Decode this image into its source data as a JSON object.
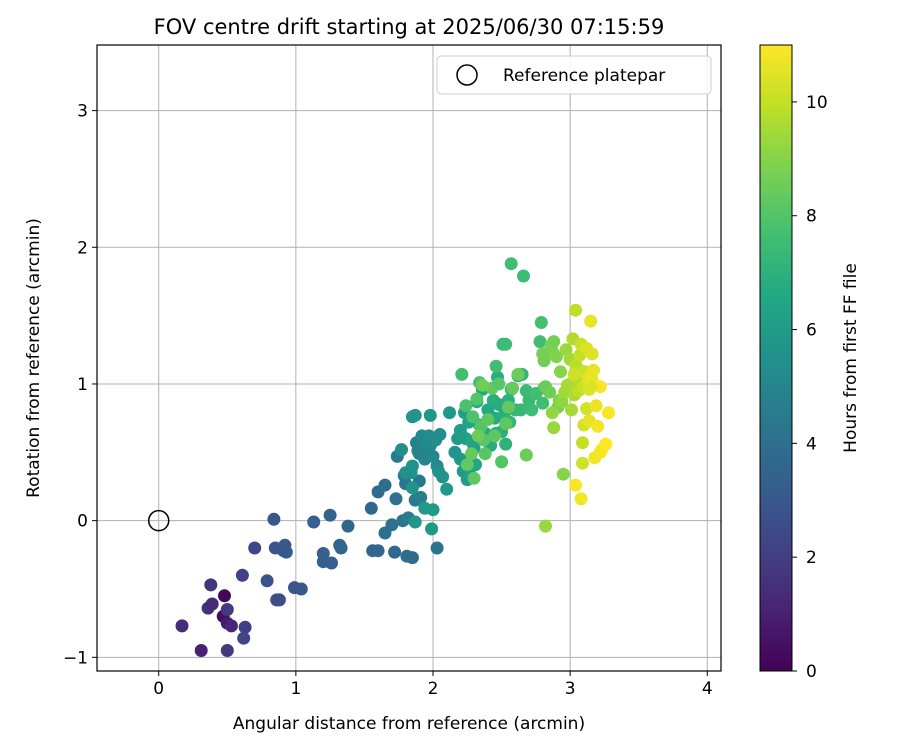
{
  "chart_data": {
    "type": "scatter",
    "title": "FOV centre drift starting at 2025/06/30 07:15:59",
    "xlabel": "Angular distance from reference (arcmin)",
    "ylabel": "Rotation from reference (arcmin)",
    "xlim": [
      -0.45,
      4.1
    ],
    "ylim": [
      -1.1,
      3.48
    ],
    "xticks": [
      0,
      1,
      2,
      3,
      4
    ],
    "yticks": [
      -1,
      0,
      1,
      2,
      3
    ],
    "grid": true,
    "legend": {
      "placement": "top-right",
      "entries": [
        "Reference platepar"
      ]
    },
    "reference_point": {
      "name": "Reference platepar",
      "x": 0,
      "y": 0
    },
    "colorbar": {
      "label": "Hours from first FF file",
      "colormap": "viridis",
      "range": [
        0,
        11
      ],
      "ticks": [
        0,
        2,
        4,
        6,
        8,
        10
      ]
    },
    "points": [
      {
        "x": 0.48,
        "y": -0.55,
        "c": 0.2
      },
      {
        "x": 0.47,
        "y": -0.7,
        "c": 0.4
      },
      {
        "x": 0.5,
        "y": -0.75,
        "c": 0.8
      },
      {
        "x": 0.17,
        "y": -0.77,
        "c": 1.4
      },
      {
        "x": 0.31,
        "y": -0.95,
        "c": 1.0
      },
      {
        "x": 0.5,
        "y": -0.95,
        "c": 1.8
      },
      {
        "x": 0.38,
        "y": -0.47,
        "c": 1.7
      },
      {
        "x": 0.36,
        "y": -0.64,
        "c": 1.5
      },
      {
        "x": 0.39,
        "y": -0.61,
        "c": 1.3
      },
      {
        "x": 0.5,
        "y": -0.65,
        "c": 1.9
      },
      {
        "x": 0.63,
        "y": -0.78,
        "c": 2.0
      },
      {
        "x": 0.62,
        "y": -0.86,
        "c": 2.2
      },
      {
        "x": 0.61,
        "y": -0.4,
        "c": 2.1
      },
      {
        "x": 0.53,
        "y": -0.77,
        "c": 1.2
      },
      {
        "x": 0.7,
        "y": -0.2,
        "c": 2.3
      },
      {
        "x": 0.84,
        "y": 0.01,
        "c": 3.0
      },
      {
        "x": 0.85,
        "y": -0.2,
        "c": 2.9
      },
      {
        "x": 0.92,
        "y": -0.18,
        "c": 3.1
      },
      {
        "x": 0.93,
        "y": -0.23,
        "c": 3.2
      },
      {
        "x": 0.91,
        "y": -0.22,
        "c": 3.0
      },
      {
        "x": 0.79,
        "y": -0.44,
        "c": 2.8
      },
      {
        "x": 0.86,
        "y": -0.58,
        "c": 2.7
      },
      {
        "x": 0.88,
        "y": -0.58,
        "c": 2.6
      },
      {
        "x": 0.99,
        "y": -0.49,
        "c": 2.9
      },
      {
        "x": 1.04,
        "y": -0.5,
        "c": 3.0
      },
      {
        "x": 1.13,
        "y": -0.01,
        "c": 3.3
      },
      {
        "x": 1.25,
        "y": 0.04,
        "c": 3.4
      },
      {
        "x": 1.2,
        "y": -0.24,
        "c": 3.4
      },
      {
        "x": 1.2,
        "y": -0.3,
        "c": 3.3
      },
      {
        "x": 1.26,
        "y": -0.31,
        "c": 3.2
      },
      {
        "x": 1.32,
        "y": -0.18,
        "c": 3.5
      },
      {
        "x": 1.33,
        "y": -0.2,
        "c": 3.6
      },
      {
        "x": 1.38,
        "y": -0.04,
        "c": 3.6
      },
      {
        "x": 1.55,
        "y": 0.09,
        "c": 3.7
      },
      {
        "x": 1.56,
        "y": -0.22,
        "c": 3.5
      },
      {
        "x": 1.6,
        "y": -0.22,
        "c": 3.6
      },
      {
        "x": 1.6,
        "y": 0.21,
        "c": 3.8
      },
      {
        "x": 1.65,
        "y": 0.26,
        "c": 3.9
      },
      {
        "x": 1.65,
        "y": -0.09,
        "c": 4.0
      },
      {
        "x": 1.7,
        "y": -0.03,
        "c": 4.1
      },
      {
        "x": 1.72,
        "y": -0.23,
        "c": 3.7
      },
      {
        "x": 1.73,
        "y": 0.16,
        "c": 4.1
      },
      {
        "x": 1.74,
        "y": 0.47,
        "c": 4.5
      },
      {
        "x": 1.78,
        "y": 0.0,
        "c": 4.2
      },
      {
        "x": 1.79,
        "y": 0.33,
        "c": 4.4
      },
      {
        "x": 1.8,
        "y": 0.27,
        "c": 4.3
      },
      {
        "x": 1.81,
        "y": -0.26,
        "c": 3.9
      },
      {
        "x": 1.82,
        "y": 0.02,
        "c": 4.6
      },
      {
        "x": 1.85,
        "y": -0.27,
        "c": 3.8
      },
      {
        "x": 1.87,
        "y": 0.15,
        "c": 4.5
      },
      {
        "x": 1.88,
        "y": 0.57,
        "c": 4.8
      },
      {
        "x": 1.89,
        "y": 0.51,
        "c": 4.7
      },
      {
        "x": 1.9,
        "y": 0.29,
        "c": 4.4
      },
      {
        "x": 1.9,
        "y": 0.49,
        "c": 4.9
      },
      {
        "x": 1.91,
        "y": 0.17,
        "c": 4.7
      },
      {
        "x": 1.92,
        "y": 0.62,
        "c": 5.0
      },
      {
        "x": 1.93,
        "y": 0.58,
        "c": 5.1
      },
      {
        "x": 1.94,
        "y": 0.45,
        "c": 4.9
      },
      {
        "x": 1.96,
        "y": 0.54,
        "c": 5.2
      },
      {
        "x": 1.97,
        "y": 0.62,
        "c": 5.3
      },
      {
        "x": 1.98,
        "y": 0.55,
        "c": 5.1
      },
      {
        "x": 2.0,
        "y": 0.47,
        "c": 5.0
      },
      {
        "x": 2.02,
        "y": 0.59,
        "c": 5.4
      },
      {
        "x": 2.03,
        "y": 0.4,
        "c": 5.2
      },
      {
        "x": 2.04,
        "y": 0.36,
        "c": 5.5
      },
      {
        "x": 2.05,
        "y": 0.63,
        "c": 5.3
      },
      {
        "x": 2.07,
        "y": 0.32,
        "c": 5.6
      },
      {
        "x": 1.87,
        "y": 0.77,
        "c": 5.6
      },
      {
        "x": 1.85,
        "y": 0.76,
        "c": 5.7
      },
      {
        "x": 1.85,
        "y": 0.4,
        "c": 5.6
      },
      {
        "x": 1.84,
        "y": 0.37,
        "c": 5.8
      },
      {
        "x": 1.84,
        "y": 0.35,
        "c": 5.7
      },
      {
        "x": 1.8,
        "y": 0.35,
        "c": 5.5
      },
      {
        "x": 1.77,
        "y": 0.52,
        "c": 5.4
      },
      {
        "x": 1.98,
        "y": 0.77,
        "c": 5.8
      },
      {
        "x": 1.99,
        "y": -0.06,
        "c": 5.9
      },
      {
        "x": 2.0,
        "y": 0.08,
        "c": 6.0
      },
      {
        "x": 2.03,
        "y": -0.2,
        "c": 4.2
      },
      {
        "x": 1.94,
        "y": 0.09,
        "c": 5.9
      },
      {
        "x": 1.87,
        "y": -0.01,
        "c": 5.8
      },
      {
        "x": 1.85,
        "y": 0.24,
        "c": 5.6
      },
      {
        "x": 2.1,
        "y": 0.23,
        "c": 5.9
      },
      {
        "x": 2.12,
        "y": 0.79,
        "c": 5.9
      },
      {
        "x": 2.16,
        "y": 0.5,
        "c": 5.7
      },
      {
        "x": 2.18,
        "y": 0.6,
        "c": 6.0
      },
      {
        "x": 2.2,
        "y": 0.45,
        "c": 5.8
      },
      {
        "x": 2.2,
        "y": 0.66,
        "c": 6.1
      },
      {
        "x": 2.22,
        "y": 0.36,
        "c": 5.9
      },
      {
        "x": 2.23,
        "y": 0.79,
        "c": 6.2
      },
      {
        "x": 2.24,
        "y": 0.6,
        "c": 6.1
      },
      {
        "x": 2.25,
        "y": 0.3,
        "c": 6.0
      },
      {
        "x": 2.26,
        "y": 0.72,
        "c": 6.3
      },
      {
        "x": 2.27,
        "y": 0.34,
        "c": 6.2
      },
      {
        "x": 2.28,
        "y": 0.58,
        "c": 6.4
      },
      {
        "x": 2.3,
        "y": 0.53,
        "c": 6.3
      },
      {
        "x": 2.31,
        "y": 0.41,
        "c": 6.5
      },
      {
        "x": 2.32,
        "y": 0.87,
        "c": 6.6
      },
      {
        "x": 2.34,
        "y": 0.7,
        "c": 6.5
      },
      {
        "x": 2.36,
        "y": 0.96,
        "c": 6.6
      },
      {
        "x": 2.38,
        "y": 0.64,
        "c": 6.7
      },
      {
        "x": 2.4,
        "y": 0.81,
        "c": 6.6
      },
      {
        "x": 2.42,
        "y": 0.55,
        "c": 6.8
      },
      {
        "x": 2.44,
        "y": 0.88,
        "c": 6.9
      },
      {
        "x": 2.45,
        "y": 0.75,
        "c": 6.7
      },
      {
        "x": 2.46,
        "y": 0.64,
        "c": 7.0
      },
      {
        "x": 2.47,
        "y": 1.05,
        "c": 6.9
      },
      {
        "x": 2.48,
        "y": 0.85,
        "c": 6.8
      },
      {
        "x": 2.5,
        "y": 0.65,
        "c": 7.0
      },
      {
        "x": 2.52,
        "y": 0.78,
        "c": 6.9
      },
      {
        "x": 2.53,
        "y": 0.56,
        "c": 7.1
      },
      {
        "x": 2.55,
        "y": 0.88,
        "c": 7.0
      },
      {
        "x": 2.56,
        "y": 0.72,
        "c": 7.2
      },
      {
        "x": 2.57,
        "y": 0.96,
        "c": 7.1
      },
      {
        "x": 2.6,
        "y": 0.81,
        "c": 7.2
      },
      {
        "x": 2.62,
        "y": 1.06,
        "c": 6.8
      },
      {
        "x": 2.64,
        "y": 0.81,
        "c": 7.3
      },
      {
        "x": 2.65,
        "y": 1.07,
        "c": 7.2
      },
      {
        "x": 2.68,
        "y": 0.95,
        "c": 7.4
      },
      {
        "x": 2.7,
        "y": 0.88,
        "c": 7.3
      },
      {
        "x": 2.72,
        "y": 0.81,
        "c": 7.5
      },
      {
        "x": 2.75,
        "y": 0.93,
        "c": 7.6
      },
      {
        "x": 2.78,
        "y": 1.31,
        "c": 7.6
      },
      {
        "x": 2.79,
        "y": 1.45,
        "c": 7.7
      },
      {
        "x": 2.8,
        "y": 0.86,
        "c": 7.6
      },
      {
        "x": 2.81,
        "y": 0.97,
        "c": 7.7
      },
      {
        "x": 2.57,
        "y": 1.88,
        "c": 7.6
      },
      {
        "x": 2.66,
        "y": 1.79,
        "c": 7.5
      },
      {
        "x": 2.51,
        "y": 1.29,
        "c": 7.4
      },
      {
        "x": 2.53,
        "y": 1.29,
        "c": 7.5
      },
      {
        "x": 2.46,
        "y": 1.13,
        "c": 7.6
      },
      {
        "x": 2.21,
        "y": 1.07,
        "c": 7.6
      },
      {
        "x": 2.34,
        "y": 1.01,
        "c": 7.7
      },
      {
        "x": 2.24,
        "y": 0.84,
        "c": 7.8
      },
      {
        "x": 2.29,
        "y": 0.76,
        "c": 7.9
      },
      {
        "x": 2.32,
        "y": 0.89,
        "c": 8.0
      },
      {
        "x": 2.35,
        "y": 0.69,
        "c": 8.0
      },
      {
        "x": 2.37,
        "y": 0.59,
        "c": 8.1
      },
      {
        "x": 2.38,
        "y": 0.49,
        "c": 8.1
      },
      {
        "x": 2.4,
        "y": 0.74,
        "c": 8.2
      },
      {
        "x": 2.43,
        "y": 0.97,
        "c": 8.3
      },
      {
        "x": 2.45,
        "y": 0.62,
        "c": 8.2
      },
      {
        "x": 2.48,
        "y": 1.0,
        "c": 8.1
      },
      {
        "x": 2.5,
        "y": 0.43,
        "c": 8.0
      },
      {
        "x": 2.53,
        "y": 0.71,
        "c": 8.2
      },
      {
        "x": 2.55,
        "y": 0.83,
        "c": 8.3
      },
      {
        "x": 2.58,
        "y": 0.97,
        "c": 8.4
      },
      {
        "x": 2.62,
        "y": 1.07,
        "c": 8.5
      },
      {
        "x": 2.25,
        "y": 0.41,
        "c": 8.3
      },
      {
        "x": 2.3,
        "y": 0.31,
        "c": 8.2
      },
      {
        "x": 2.28,
        "y": 0.49,
        "c": 8.4
      },
      {
        "x": 2.33,
        "y": 0.62,
        "c": 8.5
      },
      {
        "x": 2.36,
        "y": 0.99,
        "c": 8.6
      },
      {
        "x": 2.68,
        "y": 0.48,
        "c": 8.5
      },
      {
        "x": 2.82,
        "y": 0.98,
        "c": 8.5
      },
      {
        "x": 2.85,
        "y": 0.94,
        "c": 8.6
      },
      {
        "x": 2.86,
        "y": 1.28,
        "c": 8.7
      },
      {
        "x": 2.87,
        "y": 1.24,
        "c": 8.8
      },
      {
        "x": 2.88,
        "y": 1.31,
        "c": 8.7
      },
      {
        "x": 2.9,
        "y": 1.2,
        "c": 8.9
      },
      {
        "x": 2.91,
        "y": 0.83,
        "c": 8.8
      },
      {
        "x": 2.92,
        "y": 0.88,
        "c": 8.9
      },
      {
        "x": 2.93,
        "y": 1.09,
        "c": 9.0
      },
      {
        "x": 2.94,
        "y": 0.87,
        "c": 9.1
      },
      {
        "x": 2.95,
        "y": 0.34,
        "c": 9.0
      },
      {
        "x": 2.81,
        "y": 1.17,
        "c": 8.6
      },
      {
        "x": 2.8,
        "y": 1.22,
        "c": 8.7
      },
      {
        "x": 2.82,
        "y": -0.04,
        "c": 9.3
      },
      {
        "x": 2.87,
        "y": 0.79,
        "c": 9.2
      },
      {
        "x": 2.88,
        "y": 0.68,
        "c": 9.3
      },
      {
        "x": 2.96,
        "y": 0.94,
        "c": 9.4
      },
      {
        "x": 2.97,
        "y": 1.25,
        "c": 9.3
      },
      {
        "x": 2.98,
        "y": 0.99,
        "c": 9.5
      },
      {
        "x": 3.0,
        "y": 1.18,
        "c": 9.4
      },
      {
        "x": 3.0,
        "y": 1.0,
        "c": 9.6
      },
      {
        "x": 3.01,
        "y": 0.81,
        "c": 9.5
      },
      {
        "x": 3.02,
        "y": 1.33,
        "c": 9.7
      },
      {
        "x": 3.03,
        "y": 0.92,
        "c": 9.6
      },
      {
        "x": 3.04,
        "y": 1.14,
        "c": 9.8
      },
      {
        "x": 3.04,
        "y": 1.54,
        "c": 9.9
      },
      {
        "x": 3.05,
        "y": 1.04,
        "c": 9.7
      },
      {
        "x": 3.06,
        "y": 0.95,
        "c": 9.9
      },
      {
        "x": 3.07,
        "y": 1.21,
        "c": 10.0
      },
      {
        "x": 3.07,
        "y": 1.1,
        "c": 9.8
      },
      {
        "x": 3.08,
        "y": 1.29,
        "c": 10.1
      },
      {
        "x": 3.09,
        "y": 0.57,
        "c": 10.0
      },
      {
        "x": 3.09,
        "y": 0.42,
        "c": 10.2
      },
      {
        "x": 3.1,
        "y": 0.98,
        "c": 10.1
      },
      {
        "x": 3.1,
        "y": 0.7,
        "c": 10.3
      },
      {
        "x": 3.11,
        "y": 1.09,
        "c": 10.2
      },
      {
        "x": 3.12,
        "y": 1.26,
        "c": 10.4
      },
      {
        "x": 3.12,
        "y": 0.82,
        "c": 10.3
      },
      {
        "x": 3.13,
        "y": 1.04,
        "c": 10.5
      },
      {
        "x": 3.14,
        "y": 0.96,
        "c": 10.4
      },
      {
        "x": 3.14,
        "y": 0.73,
        "c": 10.6
      },
      {
        "x": 3.15,
        "y": 1.46,
        "c": 10.6
      },
      {
        "x": 3.16,
        "y": 1.22,
        "c": 10.5
      },
      {
        "x": 3.16,
        "y": 1.03,
        "c": 10.7
      },
      {
        "x": 3.17,
        "y": 1.1,
        "c": 10.6
      },
      {
        "x": 3.18,
        "y": 0.46,
        "c": 10.8
      },
      {
        "x": 3.19,
        "y": 0.84,
        "c": 10.7
      },
      {
        "x": 3.2,
        "y": 0.69,
        "c": 10.8
      },
      {
        "x": 3.22,
        "y": 0.98,
        "c": 10.9
      },
      {
        "x": 3.22,
        "y": 0.5,
        "c": 10.8
      },
      {
        "x": 3.23,
        "y": 0.52,
        "c": 10.9
      },
      {
        "x": 3.26,
        "y": 0.56,
        "c": 11.0
      },
      {
        "x": 3.28,
        "y": 0.79,
        "c": 10.9
      },
      {
        "x": 3.04,
        "y": 0.26,
        "c": 10.9
      },
      {
        "x": 3.08,
        "y": 0.16,
        "c": 10.8
      },
      {
        "x": 3.03,
        "y": 1.07,
        "c": 10.2
      },
      {
        "x": 3.15,
        "y": 0.98,
        "c": 10.4
      }
    ]
  }
}
